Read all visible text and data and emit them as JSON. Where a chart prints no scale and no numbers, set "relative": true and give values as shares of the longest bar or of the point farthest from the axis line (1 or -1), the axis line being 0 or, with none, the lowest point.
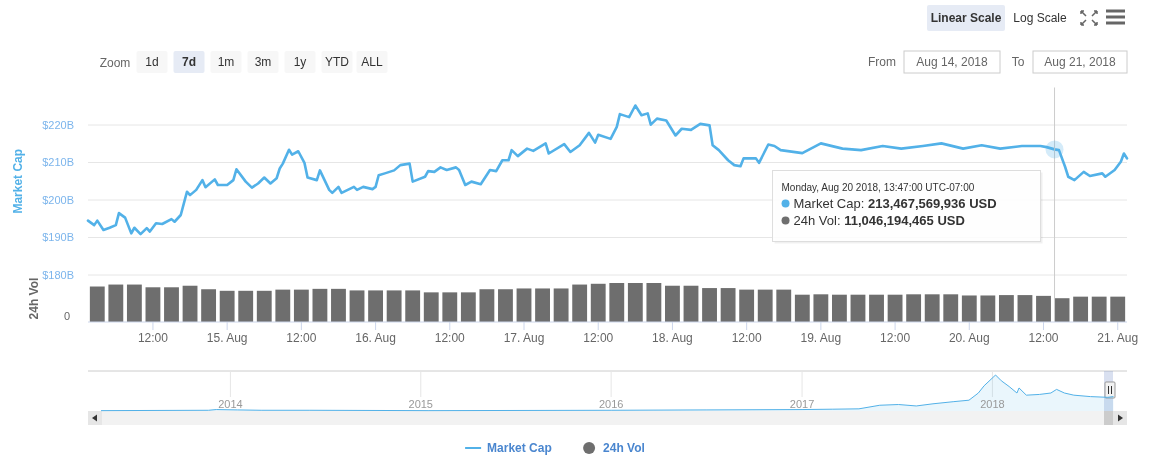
{
  "chart_data": [
    {
      "type": "line",
      "ylabel": "Market Cap",
      "xlim": [
        "2018-08-14T01:30",
        "2018-08-21T01:30"
      ],
      "ylim": [
        180,
        230
      ],
      "yticks": [
        {
          "value": 180,
          "label": "$180B"
        },
        {
          "value": 190,
          "label": "$190B"
        },
        {
          "value": 200,
          "label": "$200B"
        },
        {
          "value": 210,
          "label": "$210B"
        },
        {
          "value": 220,
          "label": "$220B"
        }
      ],
      "grid": "y",
      "tick_labels": "y",
      "legend": "bottom",
      "line_style": "solid",
      "ref_lines": [
        {
          "axis": "x",
          "value": "2018-08-20T13:47",
          "color": "#cccccc"
        }
      ],
      "series": [
        {
          "name": "Market Cap",
          "color": "#52b1e8",
          "x": [
            "2018-08-14T01:30",
            "2018-08-14T02:30",
            "2018-08-14T03:00",
            "2018-08-14T04:00",
            "2018-08-14T05:00",
            "2018-08-14T06:00",
            "2018-08-14T06:30",
            "2018-08-14T07:30",
            "2018-08-14T08:30",
            "2018-08-14T09:00",
            "2018-08-14T10:00",
            "2018-08-14T11:00",
            "2018-08-14T11:30",
            "2018-08-14T12:30",
            "2018-08-14T13:30",
            "2018-08-14T15:00",
            "2018-08-14T15:30",
            "2018-08-14T16:30",
            "2018-08-14T17:00",
            "2018-08-14T17:30",
            "2018-08-14T18:00",
            "2018-08-14T19:00",
            "2018-08-14T20:00",
            "2018-08-14T20:30",
            "2018-08-14T22:00",
            "2018-08-14T22:30",
            "2018-08-15T00:00",
            "2018-08-15T01:00",
            "2018-08-15T01:30",
            "2018-08-15T03:00",
            "2018-08-15T04:00",
            "2018-08-15T05:00",
            "2018-08-15T06:00",
            "2018-08-15T07:00",
            "2018-08-15T08:00",
            "2018-08-15T08:30",
            "2018-08-15T09:00",
            "2018-08-15T10:00",
            "2018-08-15T10:30",
            "2018-08-15T11:30",
            "2018-08-15T12:30",
            "2018-08-15T13:00",
            "2018-08-15T14:30",
            "2018-08-15T15:00",
            "2018-08-15T16:30",
            "2018-08-15T17:00",
            "2018-08-15T18:00",
            "2018-08-15T18:30",
            "2018-08-15T20:30",
            "2018-08-15T21:00",
            "2018-08-15T22:00",
            "2018-08-15T23:30",
            "2018-08-16T00:00",
            "2018-08-16T00:30",
            "2018-08-16T01:30",
            "2018-08-16T03:00",
            "2018-08-16T04:00",
            "2018-08-16T05:30",
            "2018-08-16T06:00",
            "2018-08-16T08:00",
            "2018-08-16T08:30",
            "2018-08-16T09:30",
            "2018-08-16T10:30",
            "2018-08-16T11:30",
            "2018-08-16T13:00",
            "2018-08-16T13:30",
            "2018-08-16T14:30",
            "2018-08-16T15:30",
            "2018-08-16T17:00",
            "2018-08-16T18:30",
            "2018-08-16T19:30",
            "2018-08-16T20:30",
            "2018-08-16T21:30",
            "2018-08-16T22:00",
            "2018-08-16T23:00",
            "2018-08-17T00:30",
            "2018-08-17T01:30",
            "2018-08-17T03:30",
            "2018-08-17T04:00",
            "2018-08-17T06:30",
            "2018-08-17T07:30",
            "2018-08-17T09:00",
            "2018-08-17T10:30",
            "2018-08-17T11:30",
            "2018-08-17T12:00",
            "2018-08-17T14:00",
            "2018-08-17T15:00",
            "2018-08-17T15:30",
            "2018-08-17T17:00",
            "2018-08-17T18:00",
            "2018-08-17T19:00",
            "2018-08-17T20:00",
            "2018-08-17T20:30",
            "2018-08-17T21:30",
            "2018-08-17T23:00",
            "2018-08-18T00:30",
            "2018-08-18T01:30",
            "2018-08-18T03:00",
            "2018-08-18T04:30",
            "2018-08-18T06:00",
            "2018-08-18T06:30",
            "2018-08-18T07:30",
            "2018-08-18T09:00",
            "2018-08-18T10:00",
            "2018-08-18T11:00",
            "2018-08-18T11:30",
            "2018-08-18T13:30",
            "2018-08-18T14:00",
            "2018-08-18T15:30",
            "2018-08-18T16:30",
            "2018-08-18T17:30",
            "2018-08-18T21:00",
            "2018-08-19T00:00",
            "2018-08-19T03:30",
            "2018-08-19T06:30",
            "2018-08-19T10:00",
            "2018-08-19T13:00",
            "2018-08-19T16:30",
            "2018-08-19T19:30",
            "2018-08-19T23:00",
            "2018-08-20T02:00",
            "2018-08-20T05:00",
            "2018-08-20T08:30",
            "2018-08-20T11:30",
            "2018-08-20T12:30",
            "2018-08-20T13:47",
            "2018-08-20T14:30",
            "2018-08-20T15:30",
            "2018-08-20T16:00",
            "2018-08-20T17:00",
            "2018-08-20T18:30",
            "2018-08-20T19:30",
            "2018-08-20T21:30",
            "2018-08-20T22:00",
            "2018-08-20T23:30",
            "2018-08-21T00:30",
            "2018-08-21T01:00",
            "2018-08-21T01:30"
          ],
          "values": [
            194.5,
            193.3,
            194.5,
            192.0,
            192.6,
            193.3,
            196.5,
            195.3,
            191.1,
            192.6,
            190.9,
            192.5,
            191.6,
            193.8,
            193.6,
            194.9,
            194.2,
            196.0,
            199.1,
            202.2,
            201.3,
            202.7,
            205.3,
            203.4,
            205.5,
            204.0,
            204.0,
            205.3,
            208.2,
            204.9,
            203.3,
            204.4,
            206.0,
            204.4,
            205.8,
            208.4,
            209.7,
            213.4,
            212.1,
            213.0,
            209.9,
            206.0,
            205.3,
            207.9,
            202.7,
            201.9,
            203.5,
            201.9,
            203.5,
            202.7,
            203.5,
            202.9,
            203.5,
            206.6,
            207.1,
            207.9,
            209.3,
            209.7,
            204.9,
            206.2,
            207.7,
            207.5,
            208.7,
            208.0,
            208.7,
            208.0,
            204.0,
            204.9,
            204.2,
            208.0,
            207.7,
            210.6,
            210.6,
            213.3,
            211.7,
            213.7,
            213.1,
            215.1,
            212.4,
            214.9,
            212.8,
            214.6,
            217.9,
            215.3,
            217.4,
            216.3,
            219.5,
            222.9,
            222.1,
            225.2,
            222.6,
            223.1,
            220.1,
            221.7,
            221.2,
            217.2,
            219.0,
            218.7,
            220.3,
            219.9,
            214.6,
            213.3,
            210.6,
            209.3,
            209.0,
            211.1,
            211.1,
            209.9,
            214.8,
            214.4,
            213.3,
            212.5,
            215.1,
            213.7,
            213.3,
            214.4,
            213.7,
            214.4,
            215.1,
            213.7,
            214.6,
            213.7,
            214.4,
            214.4,
            214.1,
            213.5,
            213.3,
            208.8,
            206.2,
            205.3,
            207.5,
            206.4,
            207.1,
            206.2,
            208.0,
            210.2,
            212.4,
            211.1
          ]
        }
      ],
      "annotations": [
        "Linear Scale",
        "Log Scale",
        "Zoom",
        "1d",
        "7d",
        "1m",
        "3m",
        "1y",
        "YTD",
        "ALL",
        "From",
        "Aug 14, 2018",
        "To",
        "Aug 21, 2018",
        "Monday, Aug 20 2018, 13:47:00 UTC-07:00",
        "Market Cap: 213,467,569,936 USD",
        "24h Vol: 11,046,194,465 USD"
      ]
    },
    {
      "type": "bar",
      "relative": true,
      "ylabel": "24h Vol",
      "legend": "bottom",
      "xlim": [
        "2018-08-14T01:30",
        "2018-08-21T01:30"
      ],
      "xticks": [
        {
          "value": "2018-08-14T12:00",
          "label": "12:00"
        },
        {
          "value": "2018-08-15T00:00",
          "label": "15. Aug"
        },
        {
          "value": "2018-08-15T12:00",
          "label": "12:00"
        },
        {
          "value": "2018-08-16T00:00",
          "label": "16. Aug"
        },
        {
          "value": "2018-08-16T12:00",
          "label": "12:00"
        },
        {
          "value": "2018-08-17T00:00",
          "label": "17. Aug"
        },
        {
          "value": "2018-08-17T12:00",
          "label": "12:00"
        },
        {
          "value": "2018-08-18T00:00",
          "label": "18. Aug"
        },
        {
          "value": "2018-08-18T12:00",
          "label": "12:00"
        },
        {
          "value": "2018-08-19T00:00",
          "label": "19. Aug"
        },
        {
          "value": "2018-08-19T12:00",
          "label": "12:00"
        },
        {
          "value": "2018-08-20T00:00",
          "label": "20. Aug"
        },
        {
          "value": "2018-08-20T12:00",
          "label": "12:00"
        },
        {
          "value": "2018-08-21T00:00",
          "label": "21. Aug"
        }
      ],
      "ref_lines": [
        {
          "axis": "x",
          "value": "2018-08-20T13:47",
          "color": "#cccccc"
        }
      ],
      "annotations": [
        "0"
      ],
      "series": [
        {
          "name": "24h Vol",
          "color": "#6e6e6e",
          "x": [
            "2018-08-14T03:00",
            "2018-08-14T06:00",
            "2018-08-14T09:00",
            "2018-08-14T12:00",
            "2018-08-14T15:00",
            "2018-08-14T18:00",
            "2018-08-14T21:00",
            "2018-08-15T00:00",
            "2018-08-15T03:00",
            "2018-08-15T06:00",
            "2018-08-15T09:00",
            "2018-08-15T12:00",
            "2018-08-15T15:00",
            "2018-08-15T18:00",
            "2018-08-15T21:00",
            "2018-08-16T00:00",
            "2018-08-16T03:00",
            "2018-08-16T06:00",
            "2018-08-16T09:00",
            "2018-08-16T12:00",
            "2018-08-16T15:00",
            "2018-08-16T18:00",
            "2018-08-16T21:00",
            "2018-08-17T00:00",
            "2018-08-17T03:00",
            "2018-08-17T06:00",
            "2018-08-17T09:00",
            "2018-08-17T12:00",
            "2018-08-17T15:00",
            "2018-08-17T18:00",
            "2018-08-17T21:00",
            "2018-08-18T00:00",
            "2018-08-18T03:00",
            "2018-08-18T06:00",
            "2018-08-18T09:00",
            "2018-08-18T12:00",
            "2018-08-18T15:00",
            "2018-08-18T18:00",
            "2018-08-18T21:00",
            "2018-08-19T00:00",
            "2018-08-19T03:00",
            "2018-08-19T06:00",
            "2018-08-19T09:00",
            "2018-08-19T12:00",
            "2018-08-19T15:00",
            "2018-08-19T18:00",
            "2018-08-19T21:00",
            "2018-08-20T00:00",
            "2018-08-20T03:00",
            "2018-08-20T06:00",
            "2018-08-20T09:00",
            "2018-08-20T12:00",
            "2018-08-20T15:00",
            "2018-08-20T18:00",
            "2018-08-20T21:00",
            "2018-08-21T00:00"
          ],
          "values": [
            0.91,
            0.96,
            0.96,
            0.89,
            0.89,
            0.93,
            0.84,
            0.8,
            0.8,
            0.8,
            0.83,
            0.83,
            0.85,
            0.85,
            0.81,
            0.81,
            0.81,
            0.81,
            0.76,
            0.76,
            0.76,
            0.84,
            0.84,
            0.86,
            0.86,
            0.86,
            0.96,
            0.98,
            1,
            1,
            1,
            0.93,
            0.93,
            0.87,
            0.87,
            0.83,
            0.83,
            0.83,
            0.7,
            0.71,
            0.7,
            0.7,
            0.7,
            0.7,
            0.71,
            0.71,
            0.71,
            0.68,
            0.68,
            0.69,
            0.69,
            0.67,
            0.61,
            0.65,
            0.65,
            0.65
          ]
        }
      ]
    },
    {
      "type": "area",
      "relative": true,
      "grid": "x",
      "xlim": [
        "2013-04-03",
        "2018-09-16"
      ],
      "xticks": [
        {
          "value": "2014-01-01",
          "label": "2014"
        },
        {
          "value": "2015-01-01",
          "label": "2015"
        },
        {
          "value": "2016-01-01",
          "label": "2016"
        },
        {
          "value": "2017-01-01",
          "label": "2017"
        },
        {
          "value": "2018-01-01",
          "label": "2018"
        }
      ],
      "series": [
        {
          "color": "#52b1e8",
          "x": [
            "2013-04-28",
            "2013-11-20",
            "2013-12-05",
            "2014-01-15",
            "2014-03-01",
            "2014-06-01",
            "2015-01-15",
            "2016-01-01",
            "2016-07-01",
            "2017-01-01",
            "2017-03-01",
            "2017-04-20",
            "2017-05-30",
            "2017-07-05",
            "2017-08-08",
            "2017-09-09",
            "2017-10-19",
            "2017-11-17",
            "2017-12-05",
            "2017-12-16",
            "2018-01-07",
            "2018-01-18",
            "2018-02-02",
            "2018-02-17",
            "2018-02-21",
            "2018-03-07",
            "2018-04-01",
            "2018-04-23",
            "2018-05-04",
            "2018-05-19",
            "2018-06-06",
            "2018-07-08",
            "2018-08-10",
            "2018-08-21"
          ],
          "values": [
            0.01,
            0.02,
            0.04,
            0.03,
            0.02,
            0.02,
            0.01,
            0.02,
            0.03,
            0.04,
            0.05,
            0.06,
            0.16,
            0.18,
            0.14,
            0.2,
            0.26,
            0.3,
            0.5,
            0.7,
            1,
            0.84,
            0.68,
            0.5,
            0.64,
            0.44,
            0.46,
            0.5,
            0.6,
            0.5,
            0.44,
            0.4,
            0.38,
            0.4
          ]
        }
      ]
    }
  ]
}
